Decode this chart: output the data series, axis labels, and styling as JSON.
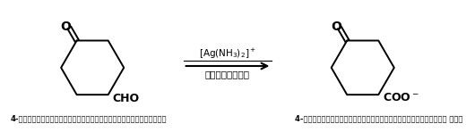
{
  "bg_color": "#ffffff",
  "fig_width": 5.3,
  "fig_height": 1.48,
  "dpi": 100,
  "arrow_label_top": "[Ag(NH$_3$)$_2$]$^+$",
  "arrow_label_bottom": "ऑक्सीकरण",
  "left_caption": "4-ऑक्सोसाइक्लोहेक्सेनकार्बेल्डिहाइड",
  "right_caption": "4-ऑक्सोसाइक्लोहेक्सेनकार्बोक्सिलेट आयन",
  "left_cho": "CHO",
  "right_coo": "COO$^-$",
  "left_o": "O",
  "right_o": "O"
}
